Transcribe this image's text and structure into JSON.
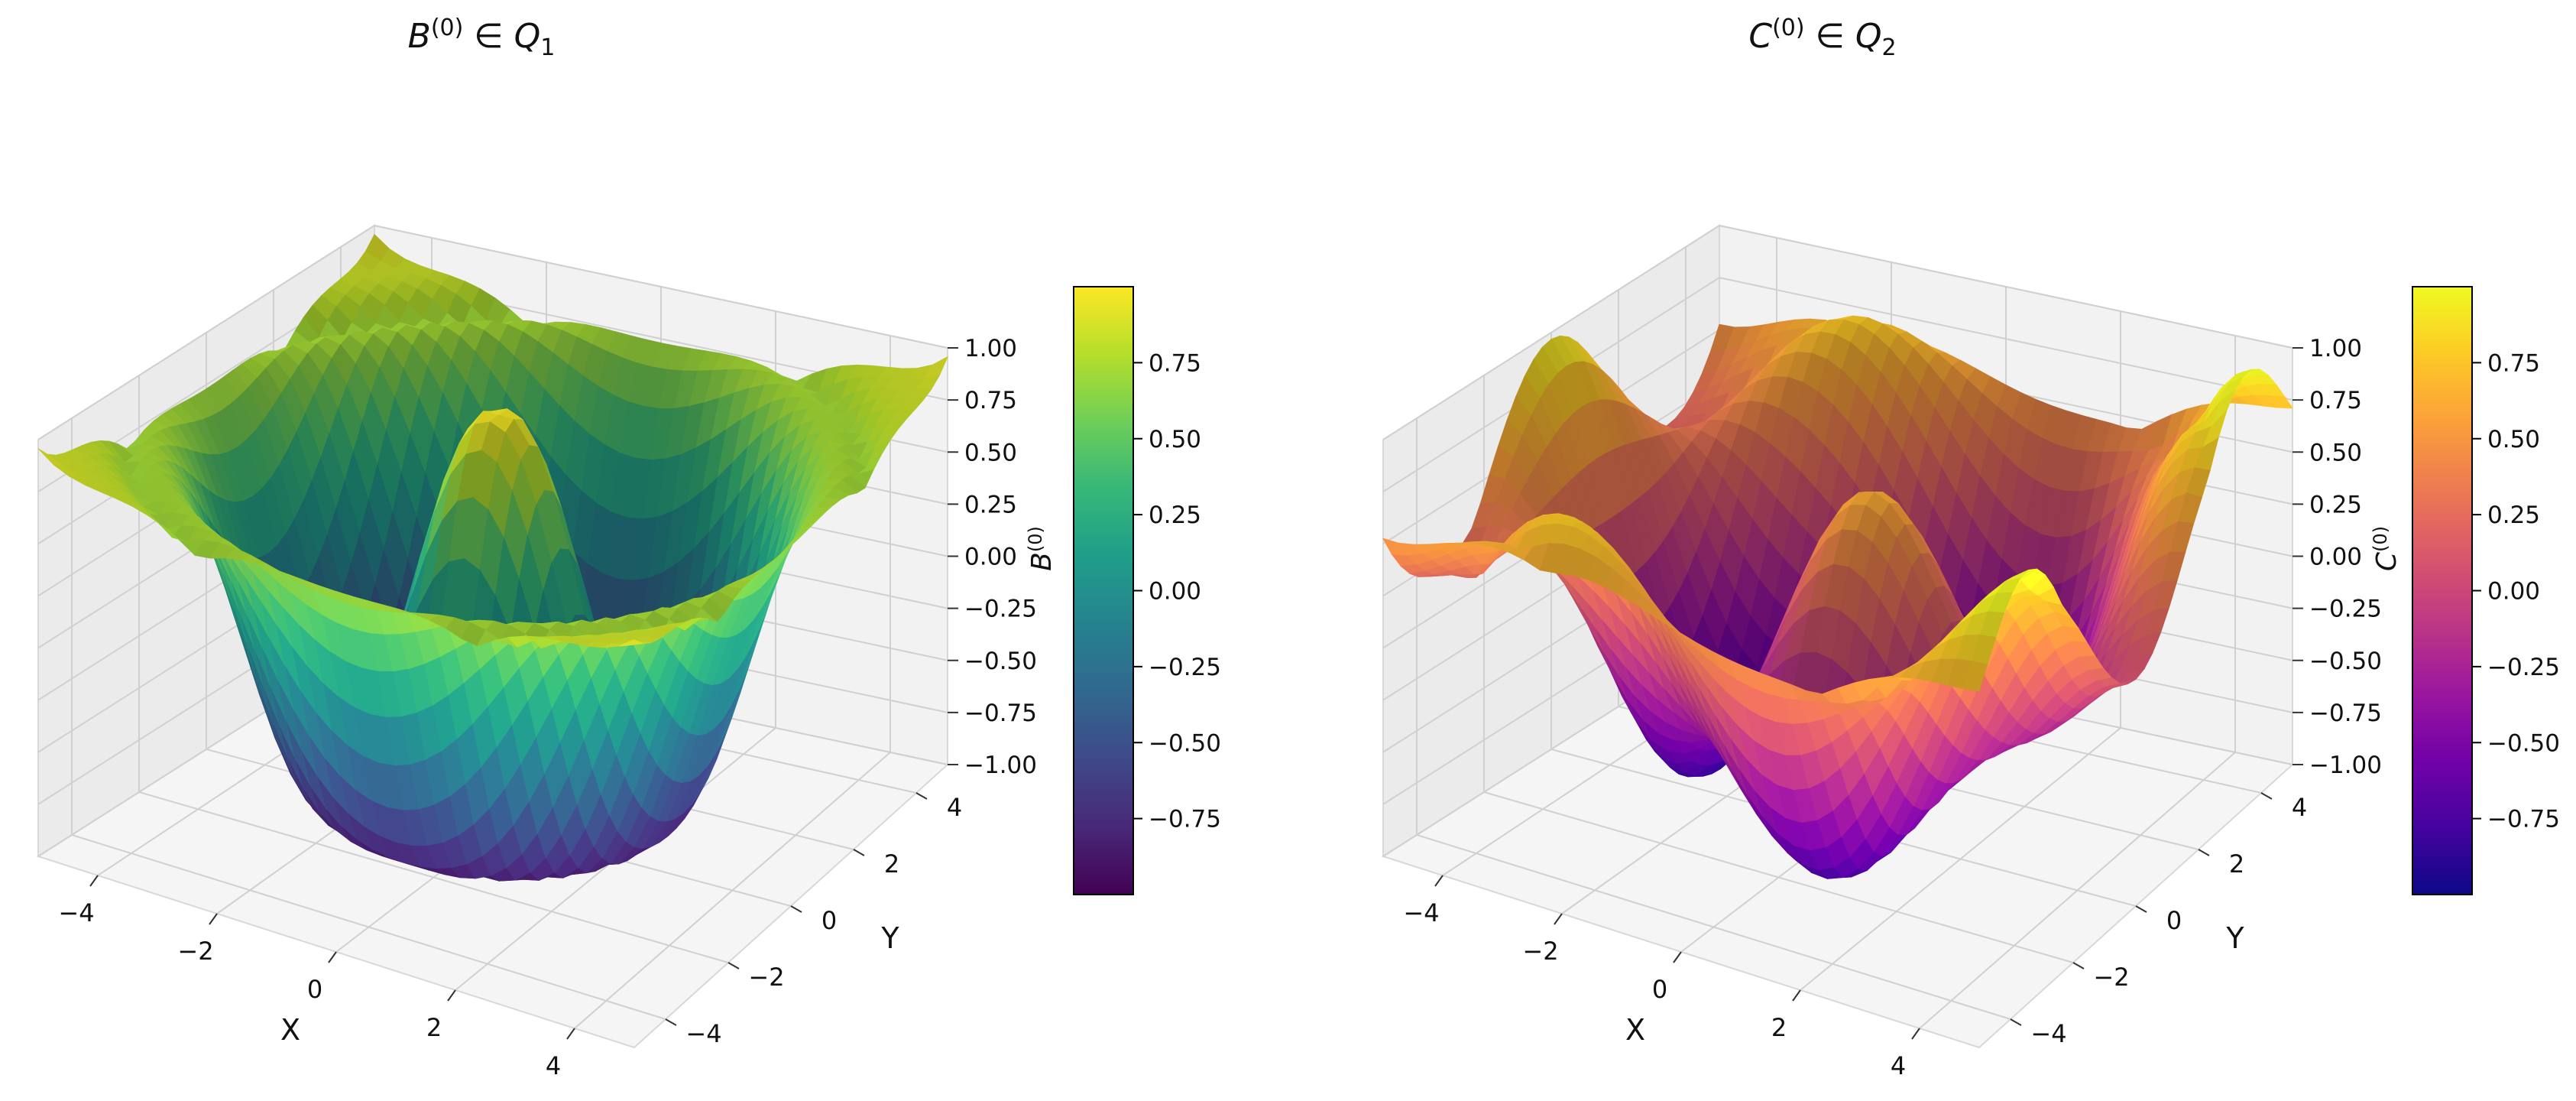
{
  "chart_data": [
    {
      "type": "surface3d",
      "title_base": "B",
      "title_sup": "(0)",
      "title_set": "Q",
      "title_sub": "1",
      "xlabel": "X",
      "ylabel": "Y",
      "zlabel_base": "B",
      "zlabel_sup": "(0)",
      "x_ticks": [
        -4,
        -2,
        0,
        2,
        4
      ],
      "y_ticks": [
        -4,
        -2,
        0,
        2,
        4
      ],
      "z_ticks": [
        -1.0,
        -0.75,
        -0.5,
        -0.25,
        0.0,
        0.25,
        0.5,
        0.75,
        1.0
      ],
      "xlim": [
        -5,
        5
      ],
      "ylim": [
        -5,
        5
      ],
      "zlim": [
        -1,
        1
      ],
      "grid": true,
      "colormap": "viridis",
      "colorbar": {
        "ticks": [
          -0.75,
          -0.5,
          -0.25,
          0.0,
          0.25,
          0.5,
          0.75
        ],
        "tick_labels": [
          "−0.75",
          "−0.50",
          "−0.25",
          "0.00",
          "0.25",
          "0.50",
          "0.75"
        ],
        "range": [
          -1,
          1
        ],
        "colors": [
          "#440154",
          "#482878",
          "#3e4989",
          "#31688e",
          "#26828e",
          "#1f9e89",
          "#35b779",
          "#6ece58",
          "#b5de2b",
          "#fde725"
        ]
      }
    },
    {
      "type": "surface3d",
      "title_base": "C",
      "title_sup": "(0)",
      "title_set": "Q",
      "title_sub": "2",
      "xlabel": "X",
      "ylabel": "Y",
      "zlabel_base": "C",
      "zlabel_sup": "(0)",
      "x_ticks": [
        -4,
        -2,
        0,
        2,
        4
      ],
      "y_ticks": [
        -4,
        -2,
        0,
        2,
        4
      ],
      "z_ticks": [
        -1.0,
        -0.75,
        -0.5,
        -0.25,
        0.0,
        0.25,
        0.5,
        0.75,
        1.0
      ],
      "xlim": [
        -5,
        5
      ],
      "ylim": [
        -5,
        5
      ],
      "zlim": [
        -1,
        1
      ],
      "grid": true,
      "colormap": "plasma",
      "colorbar": {
        "ticks": [
          -0.75,
          -0.5,
          -0.25,
          0.0,
          0.25,
          0.5,
          0.75
        ],
        "tick_labels": [
          "−0.75",
          "−0.50",
          "−0.25",
          "0.00",
          "0.25",
          "0.50",
          "0.75"
        ],
        "range": [
          -1,
          1
        ],
        "colors": [
          "#0d0887",
          "#46039f",
          "#7201a8",
          "#9c179e",
          "#bd3786",
          "#d8576b",
          "#ed7953",
          "#fb9f3a",
          "#fdca26",
          "#f0f921"
        ]
      }
    }
  ]
}
